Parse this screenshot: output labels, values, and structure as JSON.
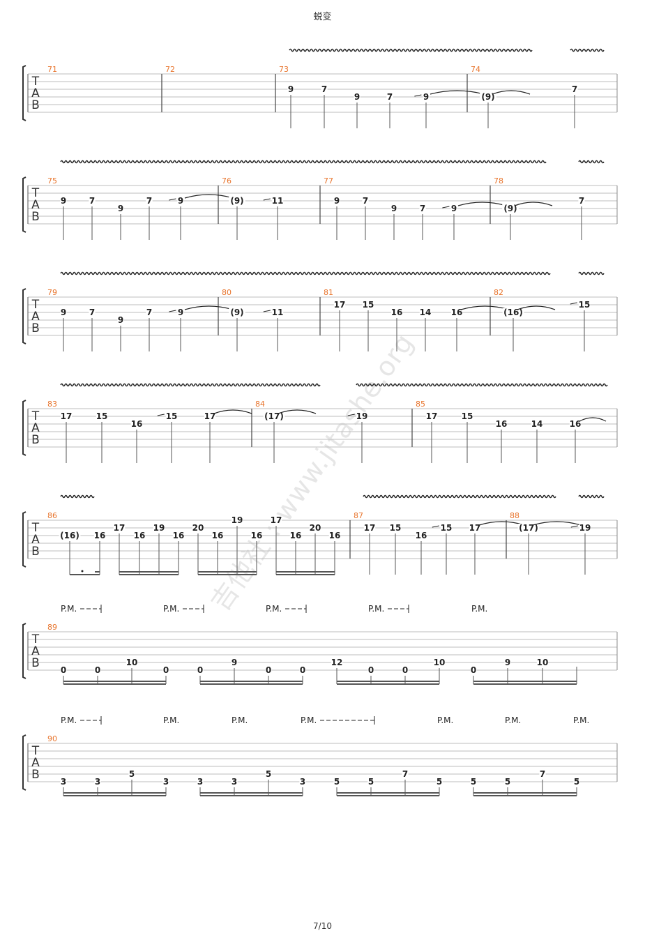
{
  "title": "蜕变",
  "page_number": "7/10",
  "watermark": "吉他社 : www.jitashe.org",
  "tab_label": [
    "T",
    "A",
    "B"
  ],
  "pm_label": "P.M.",
  "systems": [
    {
      "measures": [
        {
          "num": "71",
          "notes": []
        },
        {
          "num": "72",
          "notes": []
        },
        {
          "num": "73",
          "notes": [
            {
              "s": 3,
              "t": "9"
            },
            {
              "s": 3,
              "t": "7"
            },
            {
              "s": 4,
              "t": "9"
            },
            {
              "s": 4,
              "t": "7"
            },
            {
              "s": 4,
              "t": "9",
              "slide": true,
              "tie": true
            }
          ]
        },
        {
          "num": "74",
          "notes": [
            {
              "s": 4,
              "t": "(9)",
              "tie": true
            },
            {
              "s": 3,
              "t": "7"
            }
          ]
        }
      ]
    },
    {
      "measures": [
        {
          "num": "75",
          "notes": [
            {
              "s": 3,
              "t": "9"
            },
            {
              "s": 3,
              "t": "7"
            },
            {
              "s": 4,
              "t": "9"
            },
            {
              "s": 3,
              "t": "7"
            },
            {
              "s": 3,
              "t": "9",
              "slide": true,
              "tie": true
            }
          ]
        },
        {
          "num": "76",
          "notes": [
            {
              "s": 3,
              "t": "(9)"
            },
            {
              "s": 3,
              "t": "11",
              "slide": true
            }
          ]
        },
        {
          "num": "77",
          "notes": [
            {
              "s": 3,
              "t": "9"
            },
            {
              "s": 3,
              "t": "7"
            },
            {
              "s": 4,
              "t": "9"
            },
            {
              "s": 4,
              "t": "7"
            },
            {
              "s": 4,
              "t": "9",
              "slide": true,
              "tie": true
            }
          ]
        },
        {
          "num": "78",
          "notes": [
            {
              "s": 4,
              "t": "(9)",
              "tie": true
            },
            {
              "s": 3,
              "t": "7"
            }
          ]
        }
      ]
    },
    {
      "measures": [
        {
          "num": "79",
          "notes": [
            {
              "s": 3,
              "t": "9"
            },
            {
              "s": 3,
              "t": "7"
            },
            {
              "s": 4,
              "t": "9"
            },
            {
              "s": 3,
              "t": "7"
            },
            {
              "s": 3,
              "t": "9",
              "slide": true,
              "tie": true
            }
          ]
        },
        {
          "num": "80",
          "notes": [
            {
              "s": 3,
              "t": "(9)"
            },
            {
              "s": 3,
              "t": "11",
              "slide": true
            }
          ]
        },
        {
          "num": "81",
          "notes": [
            {
              "s": 2,
              "t": "17"
            },
            {
              "s": 2,
              "t": "15"
            },
            {
              "s": 3,
              "t": "16"
            },
            {
              "s": 3,
              "t": "14"
            },
            {
              "s": 3,
              "t": "16",
              "tie": true
            }
          ]
        },
        {
          "num": "82",
          "notes": [
            {
              "s": 3,
              "t": "(16)",
              "tie": true
            },
            {
              "s": 2,
              "t": "15",
              "slide": true
            }
          ]
        }
      ]
    },
    {
      "measures": [
        {
          "num": "83",
          "notes": [
            {
              "s": 2,
              "t": "17"
            },
            {
              "s": 2,
              "t": "15"
            },
            {
              "s": 3,
              "t": "16"
            },
            {
              "s": 2,
              "t": "15",
              "slide": true
            },
            {
              "s": 2,
              "t": "17",
              "tie": true
            }
          ]
        },
        {
          "num": "84",
          "notes": [
            {
              "s": 2,
              "t": "(17)",
              "tie": true
            },
            {
              "s": 2,
              "t": "19",
              "slide": true
            }
          ]
        },
        {
          "num": "85",
          "notes": [
            {
              "s": 2,
              "t": "17"
            },
            {
              "s": 2,
              "t": "15"
            },
            {
              "s": 3,
              "t": "16"
            },
            {
              "s": 3,
              "t": "14"
            },
            {
              "s": 3,
              "t": "16",
              "tie": true
            }
          ]
        }
      ]
    },
    {
      "measures": [
        {
          "num": "86",
          "notes": [
            {
              "s": 3,
              "t": "(16)"
            },
            {
              "s": 3,
              "t": "16"
            },
            {
              "s": 2,
              "t": "17"
            },
            {
              "s": 3,
              "t": "16"
            },
            {
              "s": 2,
              "t": "19"
            },
            {
              "s": 3,
              "t": "16"
            },
            {
              "s": 2,
              "t": "20"
            },
            {
              "s": 3,
              "t": "16"
            },
            {
              "s": 1,
              "t": "19"
            },
            {
              "s": 3,
              "t": "16"
            },
            {
              "s": 1,
              "t": "17"
            },
            {
              "s": 3,
              "t": "16"
            },
            {
              "s": 2,
              "t": "20"
            },
            {
              "s": 3,
              "t": "16"
            }
          ]
        },
        {
          "num": "87",
          "notes": [
            {
              "s": 2,
              "t": "17"
            },
            {
              "s": 2,
              "t": "15"
            },
            {
              "s": 3,
              "t": "16"
            },
            {
              "s": 2,
              "t": "15",
              "slide": true
            },
            {
              "s": 2,
              "t": "17",
              "tie": true
            }
          ]
        },
        {
          "num": "88",
          "notes": [
            {
              "s": 2,
              "t": "(17)",
              "tie": true
            },
            {
              "s": 2,
              "t": "19",
              "slide": true
            }
          ]
        }
      ]
    },
    {
      "pm": [
        "P.M.",
        "P.M.",
        "P.M.",
        "P.M.",
        "P.M."
      ],
      "measures": [
        {
          "num": "89",
          "notes": [
            {
              "s": 6,
              "t": "0"
            },
            {
              "s": 6,
              "t": "0"
            },
            {
              "s": 5,
              "t": "10"
            },
            {
              "s": 6,
              "t": "0"
            },
            {
              "s": 6,
              "t": "0"
            },
            {
              "s": 5,
              "t": "9"
            },
            {
              "s": 6,
              "t": "0"
            },
            {
              "s": 6,
              "t": "0"
            },
            {
              "s": 5,
              "t": "12"
            },
            {
              "s": 6,
              "t": "0"
            },
            {
              "s": 6,
              "t": "0"
            },
            {
              "s": 5,
              "t": "10"
            },
            {
              "s": 6,
              "t": "0"
            },
            {
              "s": 5,
              "t": "9"
            },
            {
              "s": 5,
              "t": "10"
            }
          ]
        }
      ]
    },
    {
      "pm": [
        "P.M.",
        "P.M.",
        "P.M.",
        "P.M.",
        "P.M.",
        "P.M.",
        "P.M."
      ],
      "measures": [
        {
          "num": "90",
          "notes": [
            {
              "s": 6,
              "t": "3"
            },
            {
              "s": 6,
              "t": "3"
            },
            {
              "s": 5,
              "t": "5"
            },
            {
              "s": 6,
              "t": "3"
            },
            {
              "s": 6,
              "t": "3"
            },
            {
              "s": 6,
              "t": "3"
            },
            {
              "s": 5,
              "t": "5"
            },
            {
              "s": 6,
              "t": "3"
            },
            {
              "s": 6,
              "t": "5"
            },
            {
              "s": 6,
              "t": "5"
            },
            {
              "s": 5,
              "t": "7"
            },
            {
              "s": 6,
              "t": "5"
            },
            {
              "s": 6,
              "t": "5"
            },
            {
              "s": 6,
              "t": "5"
            },
            {
              "s": 5,
              "t": "7"
            },
            {
              "s": 6,
              "t": "5"
            }
          ]
        }
      ]
    }
  ],
  "colors": {
    "measure_number": "#e8742c",
    "ink": "#222222",
    "line": "#bdbdbd"
  }
}
